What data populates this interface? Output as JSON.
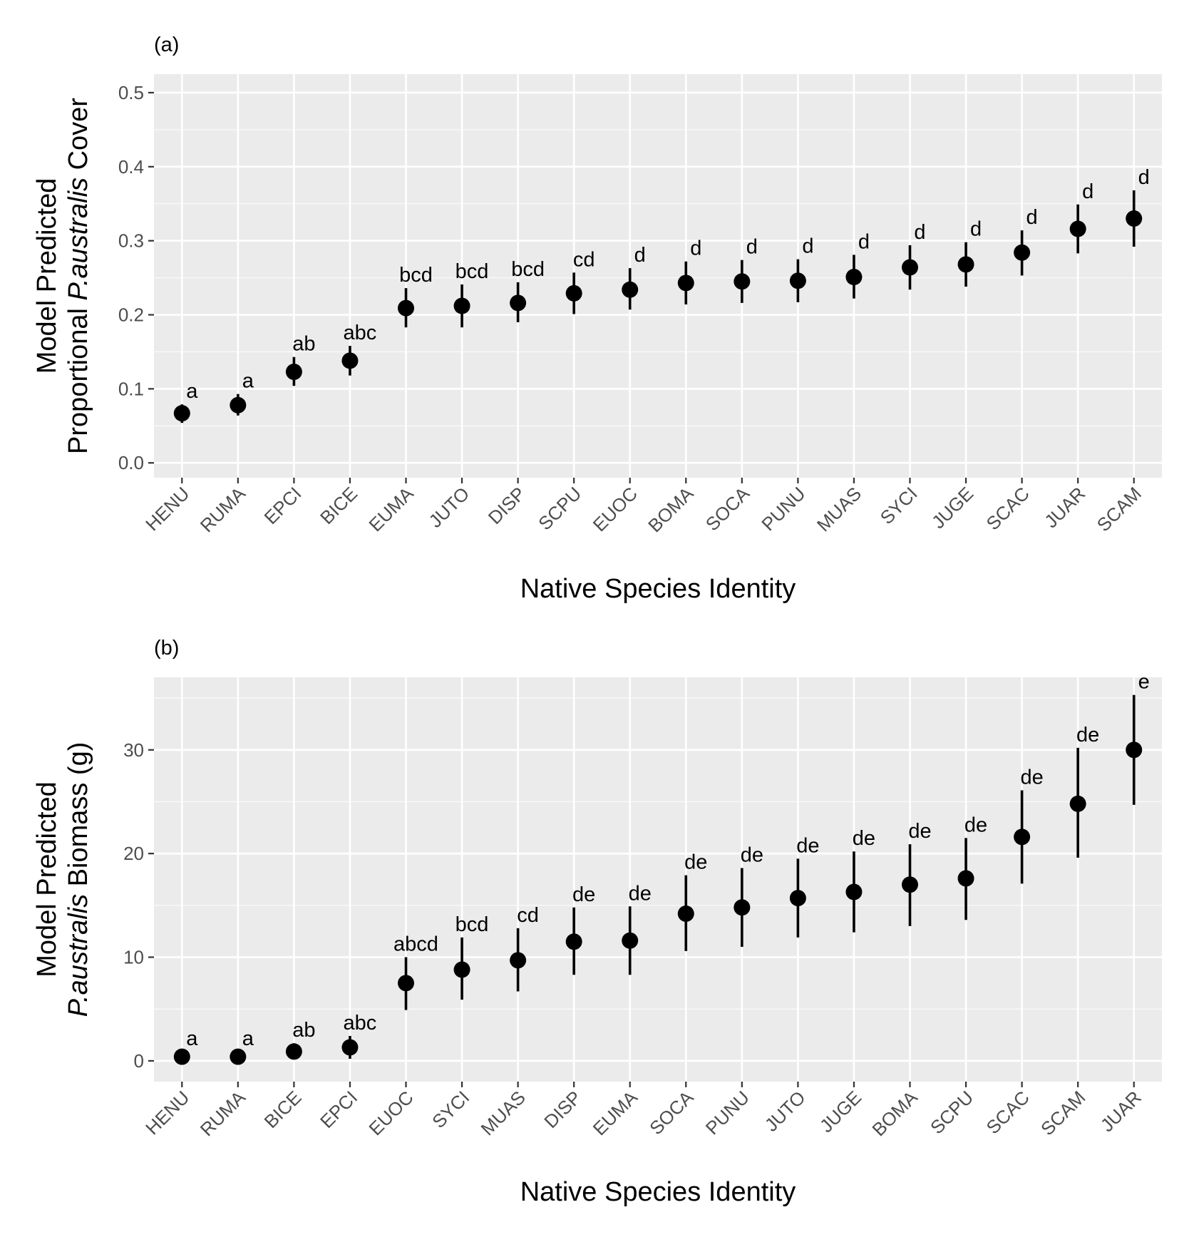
{
  "chart_data": [
    {
      "type": "scatter",
      "panel_label": "(a)",
      "xlabel": "Native Species Identity",
      "ylabel": {
        "line1": "Model Predicted",
        "line2_prefix": "Proportional ",
        "line2_italic": "P.australis",
        "line2_suffix": " Cover"
      },
      "ylim": [
        -0.02,
        0.525
      ],
      "y_ticks": [
        0.0,
        0.1,
        0.2,
        0.3,
        0.4,
        0.5
      ],
      "y_tick_labels": [
        "0.0",
        "0.1",
        "0.2",
        "0.3",
        "0.4",
        "0.5"
      ],
      "grid": true,
      "legend": "none",
      "categories": [
        "HENU",
        "RUMA",
        "EPCI",
        "BICE",
        "EUMA",
        "JUTO",
        "DISP",
        "SCPU",
        "EUOC",
        "BOMA",
        "SOCA",
        "PUNU",
        "MUAS",
        "SYCI",
        "JUGE",
        "SCAC",
        "JUAR",
        "SCAM"
      ],
      "values": [
        0.067,
        0.078,
        0.123,
        0.138,
        0.209,
        0.212,
        0.216,
        0.229,
        0.234,
        0.243,
        0.245,
        0.246,
        0.251,
        0.264,
        0.268,
        0.284,
        0.316,
        0.33
      ],
      "lower": [
        0.054,
        0.064,
        0.104,
        0.118,
        0.183,
        0.183,
        0.19,
        0.201,
        0.207,
        0.214,
        0.216,
        0.217,
        0.222,
        0.234,
        0.238,
        0.253,
        0.283,
        0.292
      ],
      "upper": [
        0.079,
        0.093,
        0.143,
        0.158,
        0.236,
        0.241,
        0.244,
        0.257,
        0.263,
        0.272,
        0.274,
        0.275,
        0.281,
        0.294,
        0.298,
        0.314,
        0.349,
        0.368
      ],
      "significance_letters": [
        "a",
        "a",
        "ab",
        "abc",
        "bcd",
        "bcd",
        "bcd",
        "cd",
        "d",
        "d",
        "d",
        "d",
        "d",
        "d",
        "d",
        "d",
        "d",
        "d"
      ]
    },
    {
      "type": "scatter",
      "panel_label": "(b)",
      "xlabel": "Native Species Identity",
      "ylabel": {
        "line1": "Model Predicted",
        "line2_prefix": "",
        "line2_italic": "P.australis",
        "line2_suffix": " Biomass (g)"
      },
      "ylim": [
        -2,
        37
      ],
      "y_ticks": [
        0,
        10,
        20,
        30
      ],
      "y_tick_labels": [
        "0",
        "10",
        "20",
        "30"
      ],
      "grid": true,
      "legend": "none",
      "categories": [
        "HENU",
        "RUMA",
        "BICE",
        "EPCI",
        "EUOC",
        "SYCI",
        "MUAS",
        "DISP",
        "EUMA",
        "SOCA",
        "PUNU",
        "JUTO",
        "JUGE",
        "BOMA",
        "SCPU",
        "SCAC",
        "SCAM",
        "JUAR"
      ],
      "values": [
        0.4,
        0.4,
        0.9,
        1.3,
        7.5,
        8.8,
        9.7,
        11.5,
        11.6,
        14.2,
        14.8,
        15.7,
        16.3,
        17.0,
        17.6,
        21.6,
        24.8,
        30.0
      ],
      "lower": [
        0.0,
        0.0,
        0.2,
        0.2,
        4.9,
        5.9,
        6.7,
        8.3,
        8.3,
        10.6,
        11.0,
        11.9,
        12.4,
        13.0,
        13.6,
        17.1,
        19.6,
        24.7
      ],
      "upper": [
        0.9,
        0.9,
        1.7,
        2.4,
        10.0,
        11.9,
        12.8,
        14.8,
        14.9,
        17.9,
        18.6,
        19.5,
        20.2,
        20.9,
        21.5,
        26.1,
        30.2,
        35.3
      ],
      "significance_letters": [
        "a",
        "a",
        "ab",
        "abc",
        "abcd",
        "bcd",
        "cd",
        "de",
        "de",
        "de",
        "de",
        "de",
        "de",
        "de",
        "de",
        "de",
        "de",
        "e"
      ]
    }
  ],
  "colors": {
    "panel_background": "#ebebeb",
    "grid_major": "#ffffff",
    "point": "#000000",
    "tick_text": "#4d4d4d",
    "tick_mark": "#333333"
  }
}
